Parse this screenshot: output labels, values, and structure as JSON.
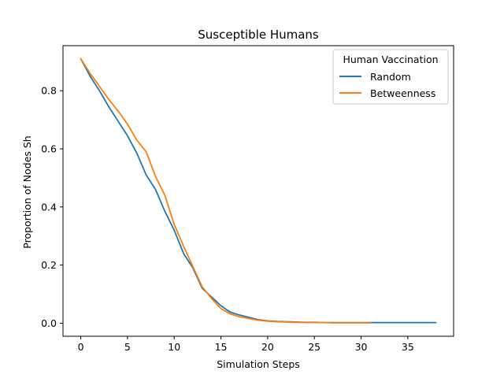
{
  "chart_data": {
    "type": "line",
    "title": "Susceptible Humans",
    "xlabel": "Simulation Steps",
    "ylabel": "Proportion of Nodes Sh",
    "xlim": [
      -1.9,
      39.9
    ],
    "ylim": [
      -0.045,
      0.955
    ],
    "xticks": [
      0,
      5,
      10,
      15,
      20,
      25,
      30,
      35
    ],
    "yticks": [
      0.0,
      0.2,
      0.4,
      0.6,
      0.8
    ],
    "ytick_labels": [
      "0.0",
      "0.2",
      "0.4",
      "0.6",
      "0.8"
    ],
    "grid": false,
    "legend": {
      "title": "Human Vaccination",
      "placement": "upper right"
    },
    "series": [
      {
        "name": "Random",
        "color": "#1f77b4",
        "x": [
          0,
          1,
          2,
          3,
          4,
          5,
          6,
          7,
          8,
          9,
          10,
          11,
          12,
          13,
          14,
          15,
          16,
          17,
          18,
          19,
          20,
          21,
          22,
          23,
          24,
          25,
          26,
          27,
          28,
          29,
          30,
          31,
          32,
          33,
          34,
          35,
          36,
          37,
          38
        ],
        "values": [
          0.91,
          0.85,
          0.8,
          0.745,
          0.695,
          0.645,
          0.585,
          0.51,
          0.46,
          0.385,
          0.32,
          0.24,
          0.19,
          0.12,
          0.09,
          0.06,
          0.038,
          0.028,
          0.02,
          0.012,
          0.008,
          0.006,
          0.005,
          0.004,
          0.003,
          0.003,
          0.002,
          0.002,
          0.002,
          0.002,
          0.002,
          0.002,
          0.002,
          0.002,
          0.002,
          0.002,
          0.002,
          0.002,
          0.002
        ]
      },
      {
        "name": "Betweenness",
        "color": "#ff7f0e",
        "x": [
          0,
          1,
          2,
          3,
          4,
          5,
          6,
          7,
          8,
          9,
          10,
          11,
          12,
          13,
          14,
          15,
          16,
          17,
          18,
          19,
          20,
          21,
          22,
          23,
          24,
          25,
          26,
          27,
          28,
          29,
          30,
          31
        ],
        "values": [
          0.91,
          0.86,
          0.815,
          0.77,
          0.73,
          0.685,
          0.63,
          0.59,
          0.505,
          0.44,
          0.34,
          0.265,
          0.195,
          0.125,
          0.085,
          0.05,
          0.032,
          0.022,
          0.016,
          0.01,
          0.007,
          0.005,
          0.004,
          0.003,
          0.003,
          0.002,
          0.002,
          0.001,
          0.001,
          0.001,
          0.001,
          0.001
        ]
      }
    ]
  }
}
